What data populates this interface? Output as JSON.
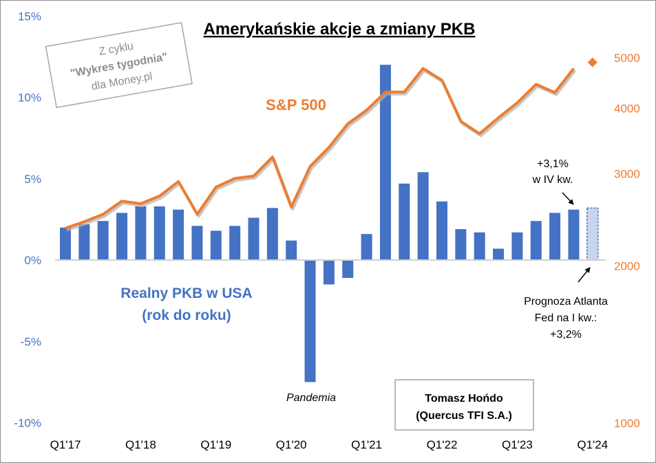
{
  "chart_data": {
    "type": "bar+line",
    "title": "Amerykańskie akcje a zmiany PKB",
    "categories": [
      "Q1'17",
      "Q2'17",
      "Q3'17",
      "Q4'17",
      "Q1'18",
      "Q2'18",
      "Q3'18",
      "Q4'18",
      "Q1'19",
      "Q2'19",
      "Q3'19",
      "Q4'19",
      "Q1'20",
      "Q2'20",
      "Q3'20",
      "Q4'20",
      "Q1'21",
      "Q2'21",
      "Q3'21",
      "Q4'21",
      "Q1'22",
      "Q2'22",
      "Q3'22",
      "Q4'22",
      "Q1'23",
      "Q2'23",
      "Q3'23",
      "Q4'23",
      "Q1'24"
    ],
    "x_tick_labels": [
      "Q1'17",
      "Q1'18",
      "Q1'19",
      "Q1'20",
      "Q1'21",
      "Q1'22",
      "Q1'23",
      "Q1'24"
    ],
    "series": [
      {
        "name": "Realny PKB w USA (rok do roku)",
        "type": "bar",
        "axis": "left",
        "color": "#4472C4",
        "values": [
          2.0,
          2.2,
          2.4,
          2.9,
          3.3,
          3.3,
          3.1,
          2.1,
          1.8,
          2.1,
          2.6,
          3.2,
          1.2,
          -7.5,
          -1.5,
          -1.1,
          1.6,
          12.0,
          4.7,
          5.4,
          3.6,
          1.9,
          1.7,
          0.7,
          1.7,
          2.4,
          2.9,
          3.1,
          3.2
        ],
        "forecast_index": 28,
        "forecast_color": "#C9D5EE"
      },
      {
        "name": "S&P 500",
        "type": "line",
        "axis": "right",
        "color": "#ED7D31",
        "values": [
          2360,
          2430,
          2510,
          2660,
          2630,
          2720,
          2900,
          2510,
          2830,
          2940,
          2970,
          3230,
          2590,
          3100,
          3370,
          3740,
          3970,
          4300,
          4300,
          4770,
          4530,
          3780,
          3580,
          3840,
          4100,
          4450,
          4290,
          4770,
          4900
        ],
        "forecast_index": 28
      }
    ],
    "left_axis": {
      "ylim": [
        -10,
        15
      ],
      "ticks": [
        15,
        10,
        5,
        0,
        -5,
        -10
      ],
      "tick_labels": [
        "15%",
        "10%",
        "5%",
        "0%",
        "-5%",
        "-10%"
      ],
      "color": "#4472C4"
    },
    "right_axis": {
      "scale": "log",
      "ylim": [
        1000,
        5000
      ],
      "ticks": [
        5000,
        4000,
        3000,
        2000,
        1000
      ],
      "tick_labels": [
        "5000",
        "4000",
        "3000",
        "2000",
        "1000"
      ],
      "color": "#ED7D31"
    },
    "annotations": {
      "sp500_label": "S&P 500",
      "gdp_label_1": "Realny PKB w USA",
      "gdp_label_2": "(rok do roku)",
      "pandemic": "Pandemia",
      "q4_line1": "+3,1%",
      "q4_line2": "w IV kw.",
      "forecast_line1": "Prognoza Atlanta",
      "forecast_line2": "Fed na I kw.:",
      "forecast_line3": "+3,2%"
    },
    "stamp": {
      "line1": "Z cyklu",
      "line2": "\"Wykres tygodnia\"",
      "line3": "dla Money.pl"
    },
    "author": {
      "name": "Tomasz Hońdo",
      "company": "(Quercus TFI S.A.)"
    }
  }
}
